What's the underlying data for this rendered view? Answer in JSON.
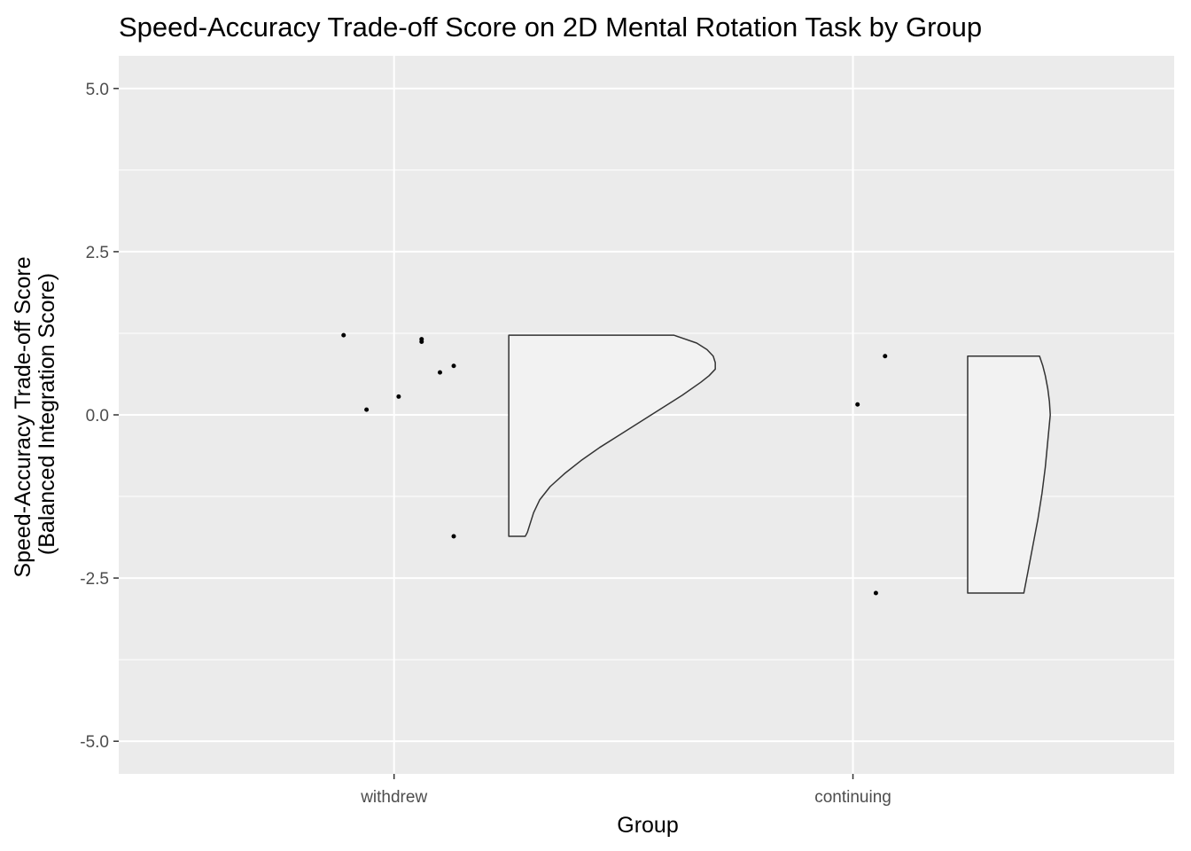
{
  "chart_data": {
    "type": "scatter",
    "subtype": "raincloud (jittered points + half violin)",
    "title": "Speed-Accuracy Trade-off Score on 2D Mental Rotation Task by Group",
    "xlabel": "Group",
    "ylabel_line1": "Speed-Accuracy Trade-off Score",
    "ylabel_line2": "(Balanced Integration Score)",
    "categories": [
      "withdrew",
      "continuing"
    ],
    "ylim": [
      -5.5,
      5.5
    ],
    "yticks": [
      5.0,
      2.5,
      0.0,
      -2.5,
      -5.0
    ],
    "ytick_labels": [
      "5.0",
      "2.5",
      "0.0",
      "-2.5",
      "-5.0"
    ],
    "grid": true,
    "points": [
      {
        "group": "withdrew",
        "x": 0.11,
        "y": 1.22
      },
      {
        "group": "withdrew",
        "x": 0.06,
        "y": 0.08
      },
      {
        "group": "withdrew",
        "x": -0.01,
        "y": 0.28
      },
      {
        "group": "withdrew",
        "x": -0.06,
        "y": 1.16
      },
      {
        "group": "withdrew",
        "x": -0.06,
        "y": 1.12
      },
      {
        "group": "withdrew",
        "x": -0.1,
        "y": 0.65
      },
      {
        "group": "withdrew",
        "x": -0.13,
        "y": 0.75
      },
      {
        "group": "withdrew",
        "x": -0.13,
        "y": -1.86
      },
      {
        "group": "continuing",
        "x": -0.01,
        "y": 0.16
      },
      {
        "group": "continuing",
        "x": -0.07,
        "y": 0.9
      },
      {
        "group": "continuing",
        "x": -0.05,
        "y": -2.73
      }
    ],
    "violins": [
      {
        "group": "withdrew",
        "offset": 0.25,
        "max_width": 0.45,
        "y": [
          -1.86,
          -1.8,
          -1.7,
          -1.5,
          -1.3,
          -1.1,
          -0.9,
          -0.7,
          -0.5,
          -0.3,
          -0.1,
          0.1,
          0.3,
          0.5,
          0.6,
          0.7,
          0.8,
          0.9,
          1.0,
          1.1,
          1.22
        ],
        "density": [
          0.08,
          0.09,
          0.1,
          0.12,
          0.15,
          0.2,
          0.27,
          0.35,
          0.44,
          0.54,
          0.64,
          0.74,
          0.84,
          0.93,
          0.97,
          1.0,
          1.0,
          0.99,
          0.96,
          0.91,
          0.8
        ]
      },
      {
        "group": "continuing",
        "offset": 0.25,
        "max_width": 0.18,
        "y": [
          -2.73,
          -2.4,
          -2.0,
          -1.6,
          -1.2,
          -0.8,
          -0.4,
          0.0,
          0.2,
          0.4,
          0.6,
          0.75,
          0.9
        ],
        "density": [
          0.68,
          0.73,
          0.79,
          0.85,
          0.9,
          0.94,
          0.97,
          1.0,
          0.99,
          0.97,
          0.94,
          0.91,
          0.87
        ]
      }
    ],
    "colors": {
      "panel_bg": "#ebebeb",
      "grid": "#ffffff",
      "violin_fill": "#f2f2f2",
      "violin_stroke": "#333333",
      "point": "#000000"
    }
  }
}
